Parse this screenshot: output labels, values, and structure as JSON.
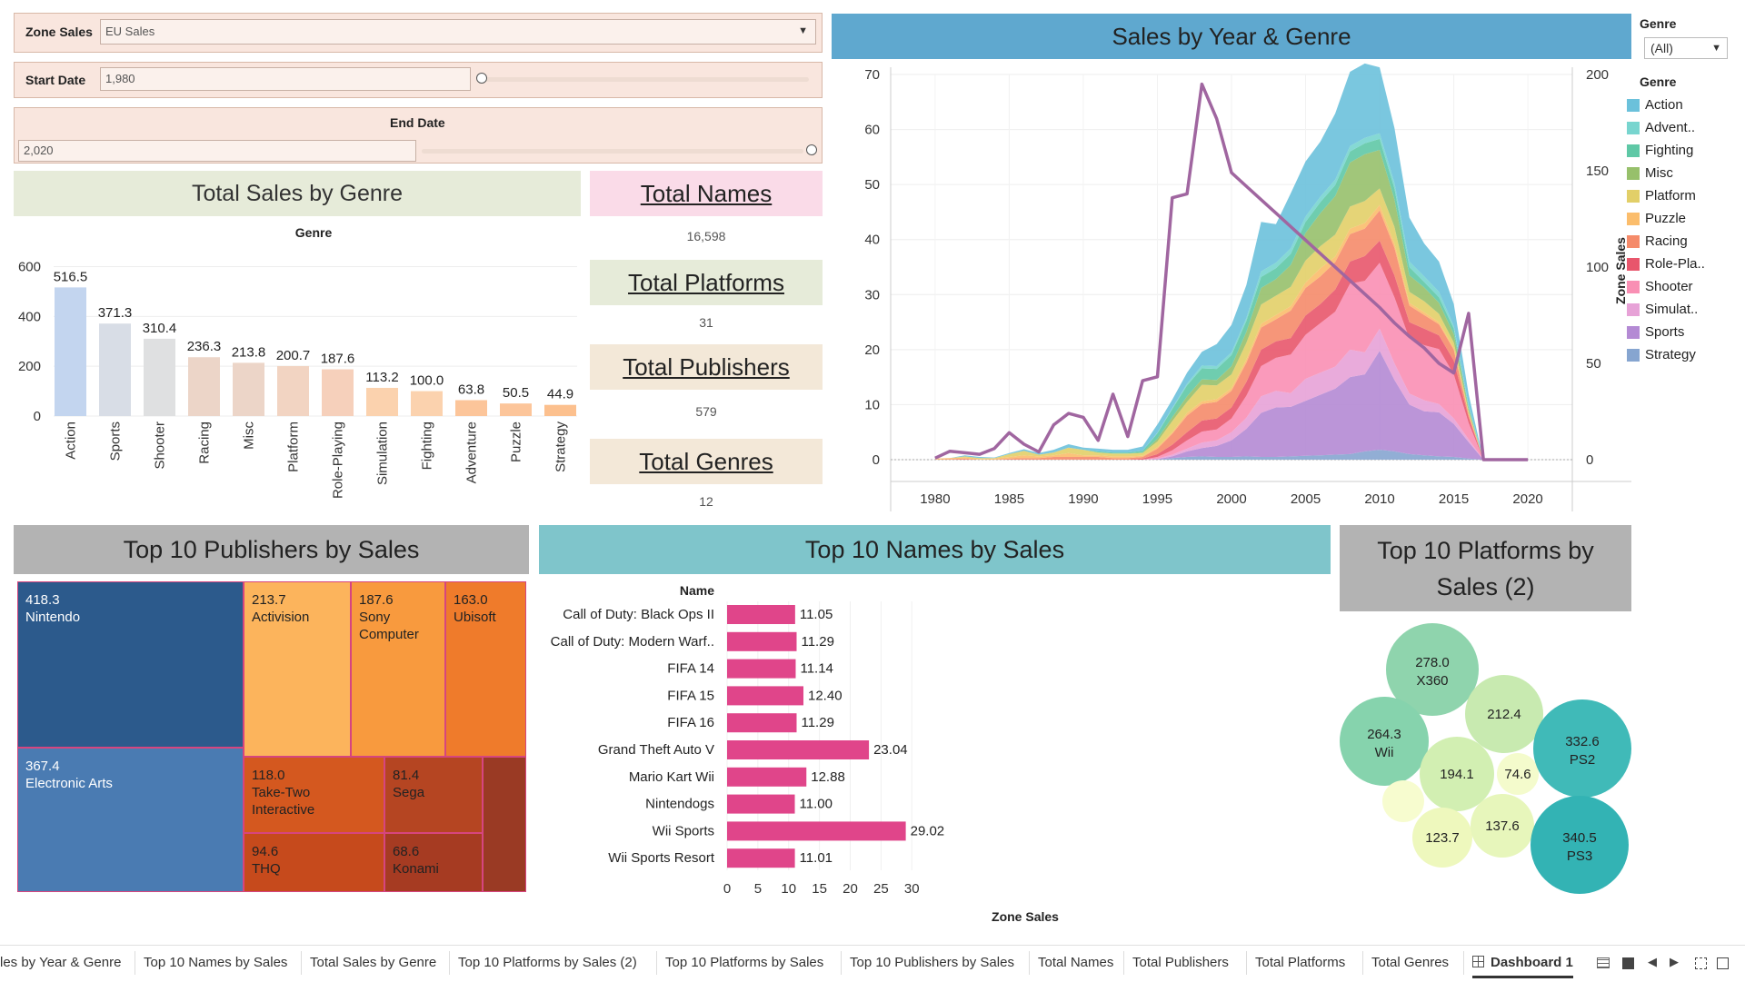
{
  "filters": {
    "zone_sales": {
      "label": "Zone Sales",
      "value": "EU Sales"
    },
    "start_date": {
      "label": "Start Date",
      "value": "1,980"
    },
    "end_date": {
      "label": "End Date",
      "value": "2,020"
    },
    "genre_filter": {
      "label": "Genre",
      "value": "(All)"
    }
  },
  "colors": {
    "filter_bg": "#f9e6de",
    "genre_title_bg": "#e6ebd9",
    "kpi_names_bg": "#fadbe8",
    "kpi_platforms_bg": "#e6ebd9",
    "kpi_publishers_bg": "#f3e8d8",
    "kpi_genres_bg": "#f3e8d8",
    "year_title_bg": "#5fa8cf",
    "publishers_title_bg": "#b3b3b3",
    "names_title_bg": "#7fc5cb",
    "platforms_title_bg": "#b3b3b3",
    "names_bar": "#e0458a",
    "line_color": "#a066a0"
  },
  "kpis": {
    "names": {
      "title": "Total Names",
      "value": "16,598"
    },
    "platforms": {
      "title": "Total Platforms",
      "value": "31"
    },
    "publishers": {
      "title": "Total Publishers",
      "value": "579"
    },
    "genres": {
      "title": "Total Genres",
      "value": "12"
    }
  },
  "genre_chart": {
    "chart_data": {
      "type": "bar",
      "title": "Total Sales by Genre",
      "xlabel": "Genre",
      "ylabel": "",
      "ylim": [
        0,
        620
      ],
      "y_ticks": [
        "600",
        "400",
        "200",
        "0"
      ],
      "categories": [
        "Action",
        "Sports",
        "Shooter",
        "Racing",
        "Misc",
        "Platform",
        "Role-Playing",
        "Simulation",
        "Fighting",
        "Adventure",
        "Puzzle",
        "Strategy"
      ],
      "values": [
        516.5,
        371.3,
        310.4,
        236.3,
        213.8,
        200.7,
        187.6,
        113.2,
        100.0,
        63.8,
        50.5,
        44.9
      ],
      "labels": [
        "516.5",
        "371.3",
        "310.4",
        "236.3",
        "213.8",
        "200.7",
        "187.6",
        "113.2",
        "100.0",
        "63.8",
        "50.5",
        "44.9"
      ],
      "colors": [
        "#c3d5ef",
        "#d8dde6",
        "#dfe0e1",
        "#ecd5c8",
        "#ecd5c8",
        "#f2d4c2",
        "#f6d0bb",
        "#fbd2ae",
        "#fbd2ae",
        "#fcc59a",
        "#fcc59a",
        "#fcc08e"
      ]
    }
  },
  "year_chart": {
    "chart_data": {
      "type": "area",
      "title": "Sales by Year & Genre",
      "ylabel_right": "Zone Sales",
      "x_ticks": [
        "1980",
        "1985",
        "1990",
        "1995",
        "2000",
        "2005",
        "2010",
        "2015",
        "2020"
      ],
      "y_left_ticks": [
        "70",
        "60",
        "50",
        "40",
        "30",
        "20",
        "10",
        "0"
      ],
      "y_right_ticks": [
        "200",
        "150",
        "100",
        "50",
        "0"
      ],
      "x_range": [
        1977,
        2023
      ],
      "y_left_range": [
        0,
        70
      ],
      "y_right_range": [
        0,
        200
      ],
      "years": [
        1980,
        1981,
        1982,
        1983,
        1984,
        1985,
        1986,
        1987,
        1988,
        1989,
        1990,
        1991,
        1992,
        1993,
        1994,
        1995,
        1996,
        1997,
        1998,
        1999,
        2000,
        2001,
        2002,
        2003,
        2004,
        2005,
        2006,
        2007,
        2008,
        2009,
        2010,
        2011,
        2012,
        2013,
        2014,
        2015,
        2016,
        2017,
        2020
      ],
      "series": [
        {
          "name": "Strategy",
          "color": "#86a5d0",
          "values": [
            0,
            0,
            0,
            0,
            0,
            0,
            0,
            0,
            0,
            0,
            0,
            0,
            0,
            0,
            0,
            0,
            0.3,
            0.5,
            0.6,
            0.5,
            0.5,
            0.6,
            0.5,
            0.5,
            0.6,
            0.7,
            0.8,
            0.9,
            1.0,
            1.5,
            1.8,
            1.5,
            1.0,
            0.8,
            0.6,
            0.5,
            0.2,
            0,
            0
          ]
        },
        {
          "name": "Sports",
          "color": "#b48ad4",
          "values": [
            0,
            0,
            0,
            0,
            0,
            0,
            0,
            0,
            0,
            0,
            0,
            0,
            0,
            0,
            0,
            0.1,
            0.3,
            1.0,
            1.5,
            2.0,
            3.0,
            5.0,
            8.0,
            9.0,
            9.0,
            10.0,
            11.0,
            12.0,
            14.0,
            14.0,
            18.0,
            13.0,
            9.0,
            8.0,
            8.0,
            6.0,
            3.0,
            0,
            0
          ]
        },
        {
          "name": "Simulation",
          "color": "#e7a2d7",
          "values": [
            0,
            0,
            0,
            0,
            0,
            0,
            0,
            0,
            0,
            0,
            0,
            0,
            0,
            0,
            0,
            0.1,
            0.3,
            0.5,
            1.0,
            1.0,
            1.5,
            2.0,
            3.0,
            3.0,
            2.5,
            4.0,
            4.0,
            4.0,
            5.0,
            4.0,
            4.0,
            3.0,
            2.0,
            2.0,
            1.5,
            1.0,
            0.5,
            0,
            0
          ]
        },
        {
          "name": "Shooter",
          "color": "#f98fb4",
          "values": [
            0,
            0,
            0,
            0,
            0,
            0,
            0,
            0,
            0,
            0,
            0,
            0,
            0,
            0,
            0,
            0.3,
            0.8,
            1.5,
            2.0,
            2.0,
            2.5,
            4.0,
            5.5,
            6.0,
            7.0,
            8.0,
            9.0,
            10.0,
            12.0,
            13.0,
            12.0,
            12.0,
            10.0,
            10.0,
            10.0,
            8.0,
            3.0,
            0,
            0
          ]
        },
        {
          "name": "Role-Playing",
          "color": "#e8566c",
          "values": [
            0,
            0,
            0,
            0,
            0,
            0,
            0,
            0,
            0,
            0,
            0,
            0,
            0,
            0,
            0.2,
            0.5,
            1.0,
            1.5,
            2.0,
            2.0,
            2.0,
            2.5,
            3.0,
            3.0,
            3.0,
            3.5,
            3.5,
            4.0,
            4.0,
            4.5,
            4.0,
            4.0,
            3.0,
            3.0,
            2.5,
            2.5,
            1.0,
            0,
            0
          ]
        },
        {
          "name": "Racing",
          "color": "#f58b6a",
          "values": [
            0,
            0.1,
            0.2,
            0,
            0,
            0.2,
            0.3,
            0.3,
            0.5,
            0.5,
            0.5,
            0.5,
            0.3,
            0.3,
            0.3,
            1.0,
            2.0,
            3.0,
            3.0,
            3.0,
            3.0,
            3.5,
            4.0,
            4.0,
            5.0,
            5.0,
            5.0,
            5.0,
            5.0,
            5.0,
            5.5,
            5.0,
            3.0,
            2.5,
            2.0,
            2.0,
            0.5,
            0,
            0
          ]
        },
        {
          "name": "Puzzle",
          "color": "#fbbd6c",
          "values": [
            0.2,
            0.2,
            0.2,
            0.1,
            0.2,
            0.3,
            0.5,
            0.3,
            0.3,
            0.7,
            0.3,
            0.3,
            0.3,
            0.3,
            0.2,
            0.3,
            0.3,
            0.5,
            0.5,
            0.5,
            0.5,
            0.6,
            0.7,
            0.8,
            0.8,
            1.0,
            1.5,
            1.0,
            1.0,
            1.0,
            1.0,
            0.8,
            0.5,
            0.5,
            0.4,
            0.3,
            0.1,
            0,
            0
          ]
        },
        {
          "name": "Platform",
          "color": "#e2cf68",
          "values": [
            0,
            0,
            0.2,
            0.2,
            0.1,
            0.5,
            0.8,
            0.3,
            0.5,
            1.0,
            1.0,
            0.5,
            0.5,
            0.5,
            0.5,
            1.0,
            2.0,
            2.0,
            3.0,
            2.5,
            2.5,
            3.0,
            3.5,
            3.5,
            3.5,
            4.0,
            4.0,
            4.0,
            4.0,
            4.0,
            3.0,
            3.0,
            2.0,
            2.0,
            1.5,
            1.0,
            0.5,
            0,
            0
          ]
        },
        {
          "name": "Misc",
          "color": "#97c06b",
          "values": [
            0,
            0,
            0,
            0,
            0,
            0,
            0,
            0,
            0,
            0,
            0,
            0,
            0,
            0,
            0.1,
            0.5,
            0.7,
            1.0,
            1.0,
            1.0,
            1.5,
            2.0,
            3.0,
            3.0,
            4.0,
            5.0,
            6.0,
            7.0,
            8.0,
            8.5,
            7.0,
            5.0,
            3.0,
            2.5,
            2.0,
            1.5,
            0.5,
            0,
            0
          ]
        },
        {
          "name": "Fighting",
          "color": "#5fc8a6",
          "values": [
            0,
            0,
            0,
            0,
            0,
            0,
            0,
            0,
            0,
            0,
            0,
            0.2,
            0.2,
            0.2,
            0.3,
            1.0,
            1.5,
            2.0,
            2.0,
            2.0,
            2.0,
            2.0,
            2.0,
            2.0,
            2.0,
            2.0,
            2.0,
            2.0,
            2.0,
            2.0,
            2.0,
            2.0,
            1.5,
            1.0,
            1.0,
            1.0,
            0.3,
            0,
            0
          ]
        },
        {
          "name": "Adventure",
          "color": "#78d5cf",
          "values": [
            0,
            0,
            0,
            0,
            0,
            0,
            0,
            0,
            0,
            0,
            0,
            0,
            0,
            0,
            0,
            0.1,
            0.2,
            0.3,
            0.5,
            0.5,
            0.5,
            0.5,
            1.0,
            1.0,
            1.0,
            1.0,
            1.0,
            1.0,
            1.0,
            1.0,
            1.0,
            1.0,
            1.0,
            1.0,
            1.0,
            0.5,
            0.3,
            0,
            0
          ]
        },
        {
          "name": "Action",
          "color": "#6bc1db",
          "values": [
            0,
            0,
            0.2,
            0.2,
            0.1,
            0.2,
            0.3,
            0.3,
            0.5,
            0.6,
            0.4,
            0.5,
            0.5,
            0.5,
            0.8,
            1.5,
            1.5,
            2.0,
            2.5,
            4.0,
            5.0,
            6.0,
            9.0,
            7.0,
            10.0,
            10.0,
            10.0,
            12.0,
            13.5,
            13.5,
            12.0,
            10.0,
            8.0,
            6.0,
            5.5,
            4.0,
            2.0,
            0,
            0
          ]
        }
      ],
      "line": {
        "name": "Zone Sales",
        "years": [
          1980,
          1981,
          1982,
          1983,
          1984,
          1985,
          1986,
          1987,
          1988,
          1989,
          1990,
          1991,
          1992,
          1993,
          1994,
          1995,
          1996,
          1997,
          1998,
          1999,
          2000,
          2001,
          2002,
          2003,
          2004,
          2005,
          2006,
          2007,
          2008,
          2009,
          2010,
          2011,
          2012,
          2013,
          2014,
          2015,
          2016,
          2017,
          2020
        ],
        "values": [
          0.8,
          4.4,
          3.6,
          2.8,
          5.8,
          14.0,
          8.0,
          4.0,
          18.0,
          24.0,
          22.0,
          10.0,
          34.0,
          12.0,
          41.0,
          43.0,
          136.0,
          138.0,
          195.0,
          177.0,
          149.0,
          142.0,
          135.0,
          128.0,
          121.0,
          114.0,
          107.0,
          100.0,
          93.0,
          86.0,
          79.0,
          71.0,
          64.0,
          58.0,
          50.0,
          45.0,
          76.0,
          0,
          0
        ]
      }
    }
  },
  "legend": {
    "title": "Genre",
    "items": [
      {
        "label": "Action",
        "color": "#6bc1db"
      },
      {
        "label": "Advent..",
        "color": "#78d5cf"
      },
      {
        "label": "Fighting",
        "color": "#5fc8a6"
      },
      {
        "label": "Misc",
        "color": "#97c06b"
      },
      {
        "label": "Platform",
        "color": "#e2cf68"
      },
      {
        "label": "Puzzle",
        "color": "#fbbd6c"
      },
      {
        "label": "Racing",
        "color": "#f58b6a"
      },
      {
        "label": "Role-Pla..",
        "color": "#e8566c"
      },
      {
        "label": "Shooter",
        "color": "#f98fb4"
      },
      {
        "label": "Simulat..",
        "color": "#e7a2d7"
      },
      {
        "label": "Sports",
        "color": "#b48ad4"
      },
      {
        "label": "Strategy",
        "color": "#86a5d0"
      }
    ]
  },
  "publishers": {
    "title": "Top 10 Publishers by Sales",
    "cells": [
      {
        "value": "418.3",
        "name": "Nintendo",
        "color": "#2c5a8c",
        "text": "#ffffff"
      },
      {
        "value": "367.4",
        "name": "Electronic Arts",
        "color": "#4a7bb2",
        "text": "#ffffff"
      },
      {
        "value": "213.7",
        "name": "Activision",
        "color": "#fcb45c",
        "text": "#222222"
      },
      {
        "value": "187.6",
        "name": "Sony Computer",
        "color": "#f89a3e",
        "text": "#222222"
      },
      {
        "value": "163.0",
        "name": "Ubisoft",
        "color": "#ef7b2b",
        "text": "#222222"
      },
      {
        "value": "118.0",
        "name": "Take-Two Interactive",
        "color": "#d4581f",
        "text": "#222222"
      },
      {
        "value": "81.4",
        "name": "Sega",
        "color": "#b54522",
        "text": "#222222"
      },
      {
        "value": "94.6",
        "name": "THQ",
        "color": "#c64a1c",
        "text": "#222222"
      },
      {
        "value": "68.6",
        "name": "Konami",
        "color": "#a63b22",
        "text": "#222222"
      },
      {
        "value": "",
        "name": "",
        "color": "#9a3a24",
        "text": "#222222"
      }
    ]
  },
  "names_chart": {
    "chart_data": {
      "type": "bar",
      "orientation": "horizontal",
      "title": "Top 10 Names by Sales",
      "row_header": "Name",
      "xlabel": "Zone Sales",
      "xlim": [
        0,
        32
      ],
      "x_ticks": [
        "0",
        "5",
        "10",
        "15",
        "20",
        "25",
        "30"
      ],
      "categories": [
        "Call of Duty: Black Ops II",
        "Call of Duty: Modern Warf..",
        "FIFA 14",
        "FIFA 15",
        "FIFA 16",
        "Grand Theft Auto V",
        "Mario Kart Wii",
        "Nintendogs",
        "Wii Sports",
        "Wii Sports Resort"
      ],
      "values": [
        11.05,
        11.29,
        11.14,
        12.4,
        11.29,
        23.04,
        12.88,
        11.0,
        29.02,
        11.01
      ],
      "labels": [
        "11.05",
        "11.29",
        "11.14",
        "12.40",
        "11.29",
        "23.04",
        "12.88",
        "11.00",
        "29.02",
        "11.01"
      ]
    }
  },
  "platforms": {
    "title": "Top 10 Platforms by Sales (2)",
    "bubbles": [
      {
        "value": "278.0",
        "name": "X360",
        "color": "#8fd4ad"
      },
      {
        "value": "212.4",
        "name": "",
        "color": "#c8eab0"
      },
      {
        "value": "264.3",
        "name": "Wii",
        "color": "#86d3ad"
      },
      {
        "value": "194.1",
        "name": "",
        "color": "#d2efb2"
      },
      {
        "value": "74.6",
        "name": "",
        "color": "#f4fbcc"
      },
      {
        "value": "332.6",
        "name": "PS2",
        "color": "#40bab8"
      },
      {
        "value": "",
        "name": "",
        "color": "#f7fccf"
      },
      {
        "value": "123.7",
        "name": "",
        "color": "#eef8bd"
      },
      {
        "value": "137.6",
        "name": "",
        "color": "#e7f6bb"
      },
      {
        "value": "340.5",
        "name": "PS3",
        "color": "#33b3b4"
      }
    ]
  },
  "tabs": [
    {
      "label": "les by Year & Genre",
      "active": false
    },
    {
      "label": "Top 10 Names by Sales",
      "active": false
    },
    {
      "label": "Total Sales by Genre",
      "active": false
    },
    {
      "label": "Top 10 Platforms by Sales (2)",
      "active": false
    },
    {
      "label": "Top 10 Platforms by Sales",
      "active": false
    },
    {
      "label": "Top 10 Publishers by Sales",
      "active": false
    },
    {
      "label": "Total Names",
      "active": false
    },
    {
      "label": "Total Publishers",
      "active": false
    },
    {
      "label": "Total Platforms",
      "active": false
    },
    {
      "label": "Total Genres",
      "active": false
    },
    {
      "label": "Dashboard 1",
      "active": true
    }
  ],
  "toolbar_icons": [
    "grid-view-icon",
    "filmstrip-view-icon",
    "prev-sheet-icon",
    "next-sheet-icon",
    "fit-screen-icon",
    "fullscreen-icon"
  ]
}
